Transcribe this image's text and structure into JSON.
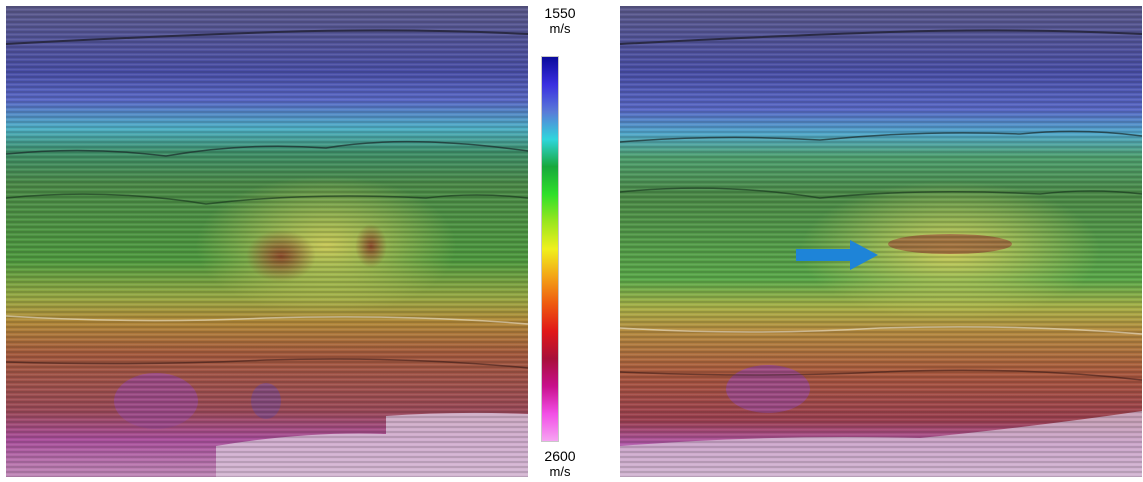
{
  "colorbar": {
    "max_value": "1550",
    "max_unit": "m/s",
    "min_value": "2600",
    "min_unit": "m/s",
    "stops": [
      "#0a0a9c",
      "#3b2fe0",
      "#5a7bd8",
      "#30d6dc",
      "#18a83c",
      "#2ee02a",
      "#9ae61e",
      "#f0f01c",
      "#f3a418",
      "#ee5a10",
      "#e01818",
      "#a8103a",
      "#c8108c",
      "#f24ee6",
      "#f6a4f2"
    ]
  },
  "panels": [
    {
      "id": "left",
      "annotation": false
    },
    {
      "id": "right",
      "annotation": true
    }
  ],
  "annotation": {
    "color": "#1e84d8"
  }
}
